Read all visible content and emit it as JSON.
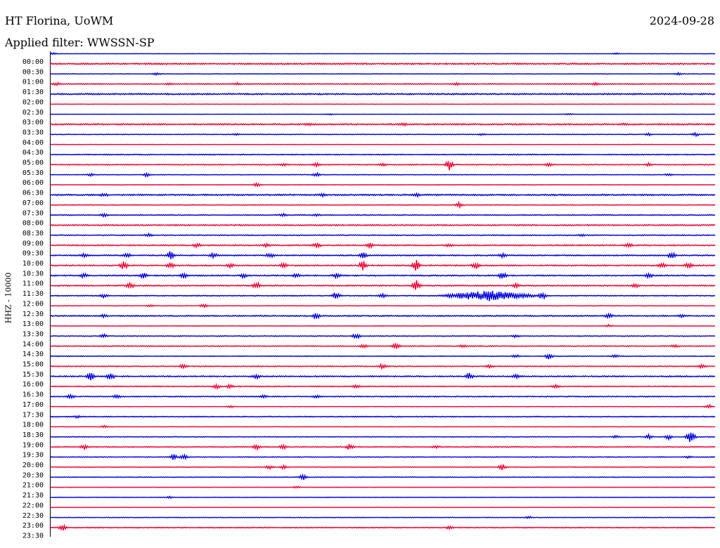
{
  "header": {
    "station": "HT Florina, UoWM",
    "date": "2024-09-28",
    "filter": "Applied filter: WWSSN-SP"
  },
  "chart_data": {
    "type": "line",
    "title": "HT Florina, UoWM",
    "ylabel": "HHZ - 10000",
    "xlabel": "",
    "colors": [
      "#0000dd",
      "#ee0033"
    ],
    "row_labels": [
      "00:00",
      "00:30",
      "01:00",
      "01:30",
      "02:00",
      "02:30",
      "03:00",
      "03:30",
      "04:00",
      "04:30",
      "05:00",
      "05:30",
      "06:00",
      "06:30",
      "07:00",
      "07:30",
      "08:00",
      "08:30",
      "09:00",
      "09:30",
      "10:00",
      "10:30",
      "11:00",
      "11:30",
      "12:00",
      "12:30",
      "13:00",
      "13:30",
      "14:00",
      "14:30",
      "15:00",
      "15:30",
      "16:00",
      "16:30",
      "17:00",
      "17:30",
      "18:00",
      "18:30",
      "19:00",
      "19:30",
      "20:00",
      "20:30",
      "21:00",
      "21:30",
      "22:00",
      "22:30",
      "23:00",
      "23:30"
    ],
    "traces": [
      {
        "row": 0,
        "bg": 0.4,
        "ev": [
          [
            0.003,
            2
          ],
          [
            0.85,
            1.5
          ]
        ]
      },
      {
        "row": 1,
        "bg": 1.2,
        "ev": []
      },
      {
        "row": 2,
        "bg": 0.5,
        "ev": [
          [
            0.16,
            2
          ],
          [
            0.945,
            2
          ]
        ]
      },
      {
        "row": 3,
        "bg": 0.8,
        "ev": [
          [
            0.01,
            2.5
          ],
          [
            0.18,
            2
          ],
          [
            0.28,
            2
          ],
          [
            0.61,
            1.5
          ],
          [
            0.82,
            2
          ]
        ]
      },
      {
        "row": 4,
        "bg": 1.2,
        "ev": []
      },
      {
        "row": 5,
        "bg": 0.4,
        "ev": []
      },
      {
        "row": 6,
        "bg": 0.3,
        "ev": [
          [
            0.42,
            1.5
          ],
          [
            0.78,
            1.5
          ]
        ]
      },
      {
        "row": 7,
        "bg": 1.2,
        "ev": [
          [
            0.39,
            1.5
          ],
          [
            0.53,
            2
          ],
          [
            0.86,
            1.5
          ]
        ]
      },
      {
        "row": 8,
        "bg": 0.6,
        "ev": [
          [
            0.28,
            1.5
          ],
          [
            0.65,
            1.5
          ],
          [
            0.9,
            2.5
          ],
          [
            0.97,
            3
          ]
        ]
      },
      {
        "row": 9,
        "bg": 0.3,
        "ev": []
      },
      {
        "row": 10,
        "bg": 0.8,
        "ev": []
      },
      {
        "row": 11,
        "bg": 0.8,
        "ev": [
          [
            0.35,
            2
          ],
          [
            0.4,
            2.5
          ],
          [
            0.5,
            2
          ],
          [
            0.6,
            9
          ],
          [
            0.75,
            2
          ],
          [
            0.9,
            2
          ]
        ]
      },
      {
        "row": 12,
        "bg": 0.5,
        "ev": [
          [
            0.06,
            2
          ],
          [
            0.145,
            3.5
          ],
          [
            0.4,
            3
          ],
          [
            0.93,
            2
          ]
        ]
      },
      {
        "row": 13,
        "bg": 0.5,
        "ev": [
          [
            0.31,
            3
          ]
        ]
      },
      {
        "row": 14,
        "bg": 1.2,
        "ev": [
          [
            0.08,
            2.5
          ],
          [
            0.41,
            2
          ],
          [
            0.55,
            2.5
          ]
        ]
      },
      {
        "row": 15,
        "bg": 0.6,
        "ev": [
          [
            0.615,
            4
          ]
        ]
      },
      {
        "row": 16,
        "bg": 0.8,
        "ev": [
          [
            0.08,
            2.5
          ],
          [
            0.35,
            2
          ],
          [
            0.4,
            2
          ]
        ]
      },
      {
        "row": 17,
        "bg": 1.0,
        "ev": []
      },
      {
        "row": 18,
        "bg": 0.8,
        "ev": [
          [
            0.147,
            3
          ],
          [
            0.8,
            1.5
          ]
        ]
      },
      {
        "row": 19,
        "bg": 1.0,
        "ev": [
          [
            0.22,
            3.5
          ],
          [
            0.325,
            3
          ],
          [
            0.4,
            4
          ],
          [
            0.48,
            4
          ],
          [
            0.6,
            2.5
          ],
          [
            0.87,
            3.5
          ]
        ]
      },
      {
        "row": 20,
        "bg": 1.0,
        "ev": [
          [
            0.05,
            2.5
          ],
          [
            0.115,
            3.5
          ],
          [
            0.18,
            6
          ],
          [
            0.245,
            4
          ],
          [
            0.33,
            3.5
          ],
          [
            0.47,
            5
          ],
          [
            0.68,
            3
          ],
          [
            0.935,
            5
          ]
        ]
      },
      {
        "row": 21,
        "bg": 1.0,
        "ev": [
          [
            0.11,
            7
          ],
          [
            0.18,
            4
          ],
          [
            0.27,
            4
          ],
          [
            0.35,
            3.5
          ],
          [
            0.47,
            7
          ],
          [
            0.55,
            9
          ],
          [
            0.64,
            5
          ],
          [
            0.92,
            4
          ],
          [
            0.96,
            5
          ]
        ]
      },
      {
        "row": 22,
        "bg": 1.0,
        "ev": [
          [
            0.05,
            4
          ],
          [
            0.14,
            4
          ],
          [
            0.2,
            5
          ],
          [
            0.29,
            4
          ],
          [
            0.37,
            3
          ],
          [
            0.43,
            4
          ],
          [
            0.68,
            6
          ],
          [
            0.9,
            4
          ]
        ]
      },
      {
        "row": 23,
        "bg": 1.0,
        "ev": [
          [
            0.12,
            5
          ],
          [
            0.31,
            6
          ],
          [
            0.55,
            10
          ],
          [
            0.7,
            3
          ],
          [
            0.88,
            4
          ]
        ]
      },
      {
        "row": 24,
        "bg": 0.8,
        "ev": [
          [
            0.08,
            3
          ],
          [
            0.43,
            7
          ],
          [
            0.5,
            3
          ],
          [
            0.66,
            8,
            0.08
          ],
          [
            0.74,
            6
          ]
        ]
      },
      {
        "row": 25,
        "bg": 0.5,
        "ev": [
          [
            0.15,
            1.5
          ],
          [
            0.23,
            3
          ]
        ]
      },
      {
        "row": 26,
        "bg": 1.0,
        "ev": [
          [
            0.08,
            2.5
          ],
          [
            0.4,
            5
          ],
          [
            0.84,
            4
          ],
          [
            0.95,
            2
          ]
        ]
      },
      {
        "row": 27,
        "bg": 0.5,
        "ev": [
          [
            0.84,
            2
          ]
        ]
      },
      {
        "row": 28,
        "bg": 0.7,
        "ev": [
          [
            0.08,
            3
          ],
          [
            0.46,
            5
          ],
          [
            0.7,
            2.5
          ]
        ]
      },
      {
        "row": 29,
        "bg": 0.8,
        "ev": [
          [
            0.47,
            3
          ],
          [
            0.52,
            5
          ],
          [
            0.62,
            2
          ],
          [
            0.94,
            2
          ]
        ]
      },
      {
        "row": 30,
        "bg": 0.6,
        "ev": [
          [
            0.7,
            2.5
          ],
          [
            0.75,
            5
          ],
          [
            0.85,
            2
          ]
        ]
      },
      {
        "row": 31,
        "bg": 0.8,
        "ev": [
          [
            0.2,
            4
          ],
          [
            0.5,
            4
          ],
          [
            0.66,
            2
          ],
          [
            0.98,
            4
          ]
        ]
      },
      {
        "row": 32,
        "bg": 1.0,
        "ev": [
          [
            0.06,
            6
          ],
          [
            0.09,
            5
          ],
          [
            0.31,
            3
          ],
          [
            0.63,
            5
          ],
          [
            0.7,
            2.5
          ]
        ]
      },
      {
        "row": 33,
        "bg": 0.8,
        "ev": [
          [
            0.25,
            3
          ],
          [
            0.27,
            3
          ],
          [
            0.46,
            2.5
          ],
          [
            0.76,
            3
          ]
        ]
      },
      {
        "row": 34,
        "bg": 0.8,
        "ev": [
          [
            0.03,
            3.5
          ],
          [
            0.1,
            2.5
          ],
          [
            0.32,
            2.5
          ],
          [
            0.4,
            2.5
          ]
        ]
      },
      {
        "row": 35,
        "bg": 0.4,
        "ev": [
          [
            0.27,
            2
          ],
          [
            0.99,
            3.5
          ]
        ]
      },
      {
        "row": 36,
        "bg": 0.8,
        "ev": [
          [
            0.04,
            2
          ]
        ]
      },
      {
        "row": 37,
        "bg": 0.4,
        "ev": [
          [
            0.08,
            2
          ]
        ]
      },
      {
        "row": 38,
        "bg": 0.6,
        "ev": [
          [
            0.85,
            2
          ],
          [
            0.9,
            3.5
          ],
          [
            0.93,
            4
          ],
          [
            0.96,
            4
          ],
          [
            0.965,
            9
          ]
        ]
      },
      {
        "row": 39,
        "bg": 0.8,
        "ev": [
          [
            0.05,
            4
          ],
          [
            0.31,
            4
          ],
          [
            0.35,
            3
          ],
          [
            0.45,
            5
          ],
          [
            0.58,
            2
          ]
        ]
      },
      {
        "row": 40,
        "bg": 0.6,
        "ev": [
          [
            0.185,
            5
          ],
          [
            0.2,
            5
          ],
          [
            0.96,
            2.5
          ]
        ]
      },
      {
        "row": 41,
        "bg": 0.6,
        "ev": [
          [
            0.33,
            3
          ],
          [
            0.35,
            3
          ],
          [
            0.68,
            5
          ]
        ]
      },
      {
        "row": 42,
        "bg": 0.6,
        "ev": [
          [
            0.38,
            4.5
          ]
        ]
      },
      {
        "row": 43,
        "bg": 0.4,
        "ev": [
          [
            0.37,
            2
          ]
        ]
      },
      {
        "row": 44,
        "bg": 0.4,
        "ev": [
          [
            0.18,
            1.5
          ]
        ]
      },
      {
        "row": 45,
        "bg": 0.3,
        "ev": []
      },
      {
        "row": 46,
        "bg": 0.5,
        "ev": [
          [
            0.72,
            2
          ]
        ]
      },
      {
        "row": 47,
        "bg": 0.8,
        "ev": [
          [
            0.018,
            5
          ],
          [
            0.6,
            2
          ]
        ]
      }
    ]
  }
}
